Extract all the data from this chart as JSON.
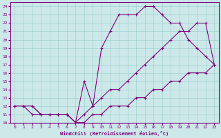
{
  "xlabel": "Windchill (Refroidissement éolien,°C)",
  "background_color": "#cce8e8",
  "line_color": "#800080",
  "xlim": [
    -0.5,
    23.5
  ],
  "ylim": [
    10,
    24.5
  ],
  "xticks": [
    0,
    1,
    2,
    3,
    4,
    5,
    6,
    7,
    8,
    9,
    10,
    11,
    12,
    13,
    14,
    15,
    16,
    17,
    18,
    19,
    20,
    21,
    22,
    23
  ],
  "yticks": [
    10,
    11,
    12,
    13,
    14,
    15,
    16,
    17,
    18,
    19,
    20,
    21,
    22,
    23,
    24
  ],
  "line1_x": [
    0,
    1,
    2,
    3,
    4,
    5,
    6,
    7,
    8,
    9,
    10,
    11,
    12,
    13,
    14,
    15,
    16,
    17,
    18,
    19,
    20,
    21,
    22,
    23
  ],
  "line1_y": [
    12,
    12,
    11,
    11,
    11,
    11,
    11,
    10,
    15,
    12,
    19,
    21,
    23,
    23,
    23,
    24,
    24,
    23,
    22,
    22,
    20,
    19,
    18,
    17
  ],
  "line2_x": [
    0,
    1,
    2,
    3,
    4,
    5,
    6,
    7,
    8,
    9,
    10,
    11,
    12,
    13,
    14,
    15,
    16,
    17,
    18,
    19,
    20,
    21,
    22,
    23
  ],
  "line2_y": [
    12,
    12,
    12,
    11,
    11,
    11,
    11,
    10,
    11,
    12,
    13,
    14,
    14,
    15,
    16,
    17,
    18,
    19,
    20,
    21,
    21,
    22,
    22,
    17
  ],
  "line3_x": [
    0,
    1,
    2,
    3,
    4,
    5,
    6,
    7,
    8,
    9,
    10,
    11,
    12,
    13,
    14,
    15,
    16,
    17,
    18,
    19,
    20,
    21,
    22,
    23
  ],
  "line3_y": [
    12,
    12,
    12,
    11,
    11,
    11,
    11,
    10,
    10,
    11,
    11,
    12,
    12,
    12,
    13,
    13,
    14,
    14,
    15,
    15,
    16,
    16,
    16,
    17
  ]
}
